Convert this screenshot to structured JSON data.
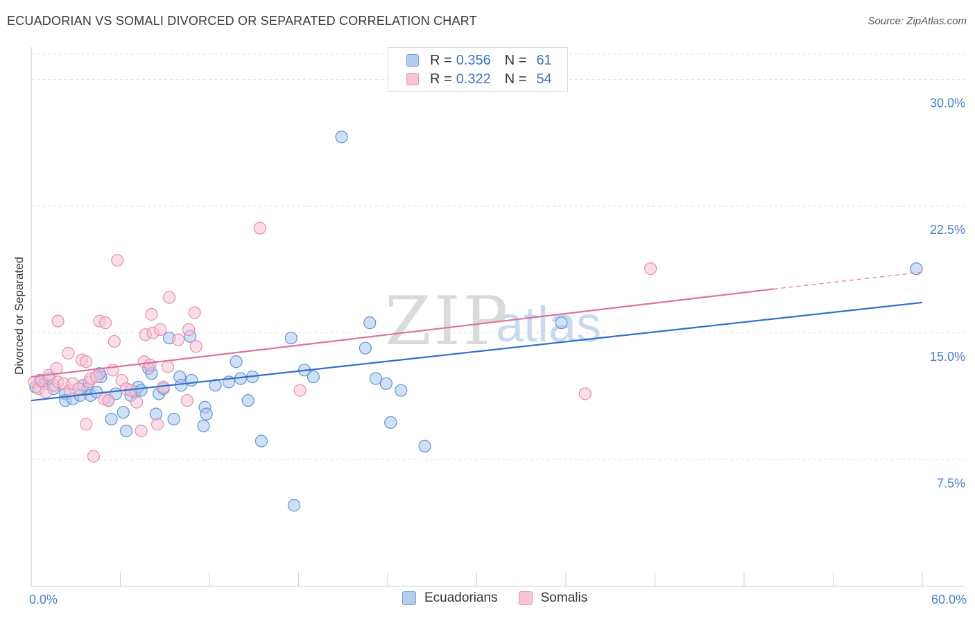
{
  "title": "ECUADORIAN VS SOMALI DIVORCED OR SEPARATED CORRELATION CHART",
  "source": "Source: ZipAtlas.com",
  "watermark": {
    "zip": "ZIP",
    "atlas": "atlas"
  },
  "legend": {
    "r_label": "R =",
    "n_label": "N =",
    "rows": [
      {
        "r": "0.356",
        "n": "61",
        "fill": "#b5cef0",
        "stroke": "#6f9fe0"
      },
      {
        "r": "0.322",
        "n": "54",
        "fill": "#f7c6d6",
        "stroke": "#eb8fb0"
      }
    ]
  },
  "colors": {
    "blue_fill": "#aac6ee",
    "blue_stroke": "#5f93d8",
    "blue_line": "#2f6fcc",
    "pink_fill": "#f7c3d4",
    "pink_stroke": "#e98bad",
    "pink_line": "#e0709a",
    "tick_label": "#4a7fcf",
    "grid": "#e4e4e4"
  },
  "chart_data": {
    "type": "scatter",
    "xlabel": "",
    "ylabel": "Divorced or Separated",
    "xlim": [
      0,
      60
    ],
    "ylim": [
      0,
      31.5
    ],
    "x_tick_labels": [
      "0.0%",
      "60.0%"
    ],
    "y_ticks": [
      7.5,
      15.0,
      22.5,
      30.0
    ],
    "y_tick_labels": [
      "7.5%",
      "15.0%",
      "22.5%",
      "30.0%"
    ],
    "grid": "horizontal dashed",
    "legend_position": "top-center",
    "series": [
      {
        "name": "Ecuadorians",
        "r": 0.356,
        "n": 61,
        "trend": {
          "x": [
            0,
            60
          ],
          "y": [
            11.0,
            16.8
          ]
        },
        "points": [
          [
            0.3,
            11.8
          ],
          [
            0.6,
            12.2
          ],
          [
            0.9,
            12.0
          ],
          [
            1.2,
            12.3
          ],
          [
            1.5,
            11.7
          ],
          [
            2.3,
            11.4
          ],
          [
            2.3,
            11.0
          ],
          [
            2.8,
            11.1
          ],
          [
            3.3,
            11.3
          ],
          [
            3.5,
            11.9
          ],
          [
            3.8,
            11.7
          ],
          [
            4.0,
            11.3
          ],
          [
            4.4,
            11.5
          ],
          [
            4.7,
            12.4
          ],
          [
            4.6,
            12.6
          ],
          [
            5.2,
            11.0
          ],
          [
            5.4,
            9.9
          ],
          [
            5.7,
            11.4
          ],
          [
            6.2,
            10.3
          ],
          [
            6.4,
            9.2
          ],
          [
            6.7,
            11.3
          ],
          [
            7.0,
            11.5
          ],
          [
            7.2,
            11.8
          ],
          [
            7.4,
            11.6
          ],
          [
            7.9,
            12.9
          ],
          [
            8.1,
            12.6
          ],
          [
            8.4,
            10.2
          ],
          [
            8.6,
            11.4
          ],
          [
            8.9,
            11.7
          ],
          [
            9.3,
            14.7
          ],
          [
            9.6,
            9.9
          ],
          [
            10.0,
            12.4
          ],
          [
            10.1,
            11.9
          ],
          [
            10.7,
            14.8
          ],
          [
            10.8,
            12.2
          ],
          [
            11.6,
            9.5
          ],
          [
            11.7,
            10.6
          ],
          [
            11.8,
            10.2
          ],
          [
            12.4,
            11.9
          ],
          [
            13.3,
            12.1
          ],
          [
            13.8,
            13.3
          ],
          [
            14.1,
            12.3
          ],
          [
            14.6,
            11.0
          ],
          [
            14.9,
            12.4
          ],
          [
            15.5,
            8.6
          ],
          [
            17.5,
            14.7
          ],
          [
            17.7,
            4.8
          ],
          [
            18.4,
            12.8
          ],
          [
            19.0,
            12.4
          ],
          [
            20.9,
            26.6
          ],
          [
            22.5,
            14.1
          ],
          [
            22.8,
            15.6
          ],
          [
            23.2,
            12.3
          ],
          [
            23.9,
            12.0
          ],
          [
            24.2,
            9.7
          ],
          [
            24.9,
            11.6
          ],
          [
            26.5,
            8.3
          ],
          [
            35.7,
            15.6
          ],
          [
            59.6,
            18.8
          ]
        ]
      },
      {
        "name": "Somalis",
        "r": 0.322,
        "n": 54,
        "trend": {
          "x": [
            0,
            50
          ],
          "y": [
            12.4,
            17.6
          ]
        },
        "trend_dashed": {
          "x": [
            50,
            60
          ],
          "y": [
            17.6,
            18.6
          ]
        },
        "points": [
          [
            0.2,
            12.1
          ],
          [
            0.5,
            11.7
          ],
          [
            0.7,
            12.2
          ],
          [
            1.0,
            11.5
          ],
          [
            1.2,
            12.5
          ],
          [
            1.5,
            11.9
          ],
          [
            1.7,
            12.9
          ],
          [
            1.8,
            12.1
          ],
          [
            1.8,
            15.7
          ],
          [
            2.2,
            12.0
          ],
          [
            2.5,
            13.8
          ],
          [
            2.6,
            11.6
          ],
          [
            2.8,
            12.0
          ],
          [
            3.2,
            11.7
          ],
          [
            3.4,
            13.4
          ],
          [
            3.7,
            13.3
          ],
          [
            3.7,
            9.6
          ],
          [
            3.9,
            12.1
          ],
          [
            4.0,
            12.3
          ],
          [
            4.2,
            7.7
          ],
          [
            4.4,
            12.4
          ],
          [
            4.6,
            15.7
          ],
          [
            4.9,
            11.1
          ],
          [
            5.0,
            15.6
          ],
          [
            5.2,
            11.0
          ],
          [
            5.5,
            12.8
          ],
          [
            5.6,
            14.5
          ],
          [
            5.8,
            19.3
          ],
          [
            6.1,
            12.2
          ],
          [
            6.4,
            11.7
          ],
          [
            6.7,
            11.6
          ],
          [
            7.1,
            10.9
          ],
          [
            7.4,
            9.2
          ],
          [
            7.6,
            13.3
          ],
          [
            7.7,
            14.9
          ],
          [
            8.0,
            13.1
          ],
          [
            8.1,
            16.1
          ],
          [
            8.2,
            15.0
          ],
          [
            8.5,
            9.6
          ],
          [
            8.7,
            15.2
          ],
          [
            8.9,
            11.8
          ],
          [
            9.2,
            13.0
          ],
          [
            9.3,
            17.1
          ],
          [
            9.9,
            14.6
          ],
          [
            10.5,
            11.0
          ],
          [
            10.6,
            15.2
          ],
          [
            11.0,
            16.2
          ],
          [
            11.1,
            14.2
          ],
          [
            15.4,
            21.2
          ],
          [
            18.1,
            11.6
          ],
          [
            37.3,
            11.4
          ],
          [
            41.7,
            18.8
          ]
        ]
      }
    ]
  }
}
